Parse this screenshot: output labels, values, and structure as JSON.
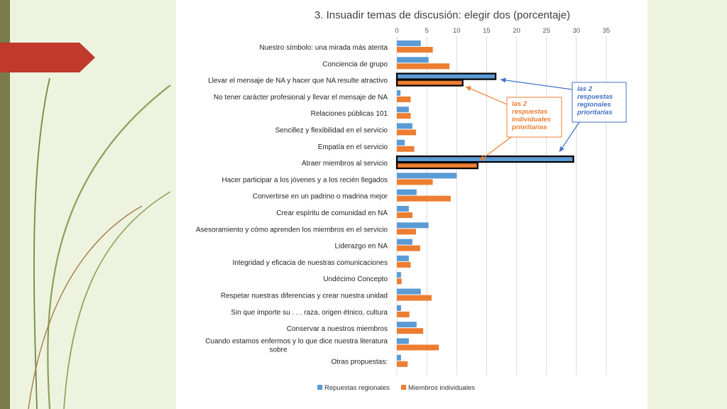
{
  "chart_data": {
    "type": "bar",
    "orientation": "horizontal",
    "title": "3. Insuadir temas de discusión: elegir dos (porcentaje)",
    "xlim": [
      0,
      35
    ],
    "xticks": [
      "0",
      "5",
      "10",
      "15",
      "20",
      "25",
      "30",
      "35"
    ],
    "grid": true,
    "legend_position": "bottom",
    "categories": [
      "Nuestro símbolo: una mirada más atenta",
      "Conciencia de grupo",
      "Llevar el mensaje de NA y hacer que NA resulte atractivo",
      "No tener carácter profesional y llevar el mensaje de NA",
      "Relaciones públicas 101",
      "Sencillez y flexibilidad en el servicio",
      "Empatía en el servicio",
      "Atraer miembros al servicio",
      "Hacer participar a los jóvenes y a los recién llegados",
      "Convertirse en un padrino o madrina mejor",
      "Crear espíritu de comunidad en NA",
      "Asesoramiento y cómo aprenden los miembros en el servicio",
      "Liderazgo en NA",
      "Integridad y eficacia de nuestras comunicaciones",
      "Undécimo Concepto",
      "Respetar nuestras diferencias y crear nuestra unidad",
      "Sin que importe su . . . raza, origen étnico, cultura",
      "Conservar a nuestros miembros",
      "Cuando estamos enfermos y lo que dice nuestra literatura sobre",
      "Otras propuestas:"
    ],
    "series": [
      {
        "name": "Repuestas regionales",
        "color": "#5b9bd5",
        "values": [
          4,
          5.3,
          16.5,
          0.6,
          2,
          2.6,
          1.3,
          29.5,
          10,
          3.3,
          2,
          5.3,
          2.6,
          2,
          0.7,
          4,
          0.7,
          3.3,
          2,
          0.7
        ]
      },
      {
        "name": "Miembros individuales",
        "color": "#ed7d31",
        "values": [
          6,
          8.8,
          11,
          2.3,
          2.3,
          3.2,
          2.9,
          13.5,
          6,
          9,
          2.6,
          3.2,
          3.9,
          2.3,
          0.8,
          5.8,
          2.1,
          4.4,
          7,
          1.8
        ]
      }
    ],
    "highlighted_categories": [
      2,
      7
    ],
    "annotations": [
      {
        "text_lines": [
          "las 2",
          "respuestas",
          "regionales",
          "prioritarias"
        ],
        "color": "#4472c4"
      },
      {
        "text_lines": [
          "las 2",
          "respuestas",
          "individuales",
          "prioritarias"
        ],
        "color": "#ed7d31"
      }
    ]
  },
  "colors": {
    "accent_red": "#c0392b",
    "side_bar": "#7a7a4a",
    "background": "#eef3df"
  }
}
